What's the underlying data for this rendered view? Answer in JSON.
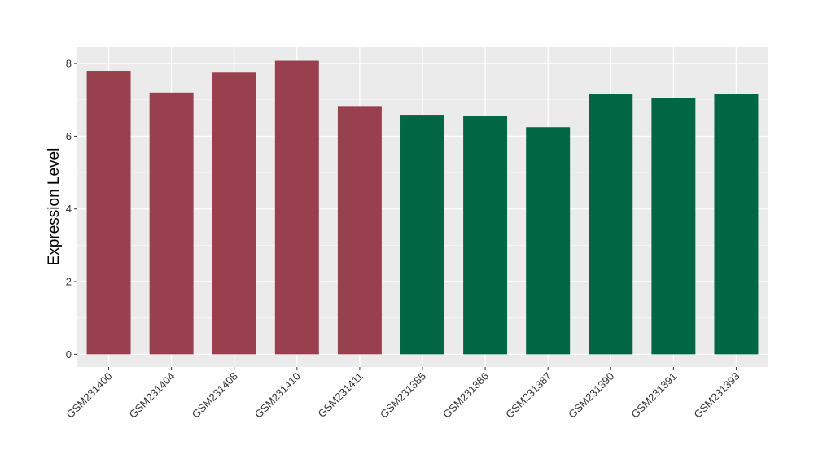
{
  "chart_data": {
    "type": "bar",
    "title": "",
    "xlabel": "",
    "ylabel": "Expression Level",
    "categories": [
      "GSM231400",
      "GSM231404",
      "GSM231408",
      "GSM231410",
      "GSM231411",
      "GSM231385",
      "GSM231386",
      "GSM231387",
      "GSM231390",
      "GSM231391",
      "GSM231393"
    ],
    "values": [
      7.8,
      7.2,
      7.75,
      8.08,
      6.83,
      6.59,
      6.55,
      6.25,
      7.17,
      7.05,
      7.17
    ],
    "bar_colors": [
      "#99404F",
      "#99404F",
      "#99404F",
      "#99404F",
      "#99404F",
      "#006644",
      "#006644",
      "#006644",
      "#006644",
      "#006644",
      "#006644"
    ],
    "ylim": [
      -0.35,
      8.45
    ],
    "yticks": [
      0,
      2,
      4,
      6,
      8
    ],
    "grid": true,
    "panel_background": "#EBEBEB",
    "legend": "none"
  }
}
